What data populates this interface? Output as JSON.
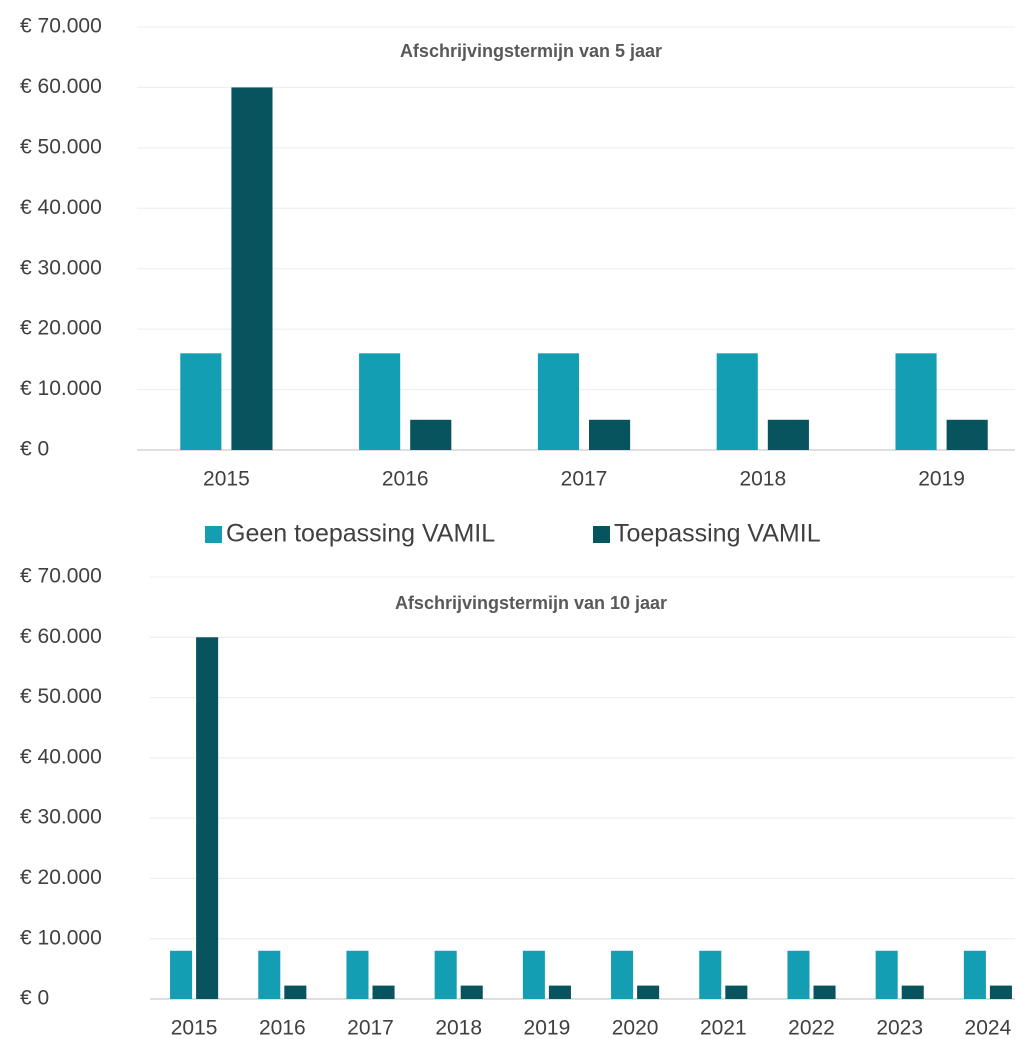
{
  "chart_data": [
    {
      "type": "bar",
      "title": "Afschrijvingstermijn van 5 jaar",
      "categories": [
        "2015",
        "2016",
        "2017",
        "2018",
        "2019"
      ],
      "series": [
        {
          "name": "Geen toepassing VAMIL",
          "color": "#139eb4",
          "values": [
            16000,
            16000,
            16000,
            16000,
            16000
          ]
        },
        {
          "name": "Toepassing VAMIL",
          "color": "#08545e",
          "values": [
            60000,
            5000,
            5000,
            5000,
            5000
          ]
        }
      ],
      "ylim": [
        0,
        70000
      ],
      "yticks": [
        {
          "value": 0,
          "label": "€ 0"
        },
        {
          "value": 10000,
          "label": "€ 10.000"
        },
        {
          "value": 20000,
          "label": "€ 20.000"
        },
        {
          "value": 30000,
          "label": "€ 30.000"
        },
        {
          "value": 40000,
          "label": "€ 40.000"
        },
        {
          "value": 50000,
          "label": "€ 50.000"
        },
        {
          "value": 60000,
          "label": "€ 60.000"
        },
        {
          "value": 70000,
          "label": "€ 70.000"
        }
      ],
      "grid": true,
      "legend": "bottom"
    },
    {
      "type": "bar",
      "title": "Afschrijvingstermijn van 10 jaar",
      "categories": [
        "2015",
        "2016",
        "2017",
        "2018",
        "2019",
        "2020",
        "2021",
        "2022",
        "2023",
        "2024"
      ],
      "series": [
        {
          "color": "#139eb4",
          "values": [
            8000,
            8000,
            8000,
            8000,
            8000,
            8000,
            8000,
            8000,
            8000,
            8000
          ]
        },
        {
          "color": "#08545e",
          "values": [
            60000,
            2222,
            2222,
            2222,
            2222,
            2222,
            2222,
            2222,
            2222,
            2222
          ]
        }
      ],
      "ylim": [
        0,
        70000
      ],
      "yticks": [
        {
          "value": 0,
          "label": "€ 0"
        },
        {
          "value": 10000,
          "label": "€ 10.000"
        },
        {
          "value": 20000,
          "label": "€ 20.000"
        },
        {
          "value": 30000,
          "label": "€ 30.000"
        },
        {
          "value": 40000,
          "label": "€ 40.000"
        },
        {
          "value": 50000,
          "label": "€ 50.000"
        },
        {
          "value": 60000,
          "label": "€ 60.000"
        },
        {
          "value": 70000,
          "label": "€ 70.000"
        }
      ],
      "grid": true
    }
  ]
}
